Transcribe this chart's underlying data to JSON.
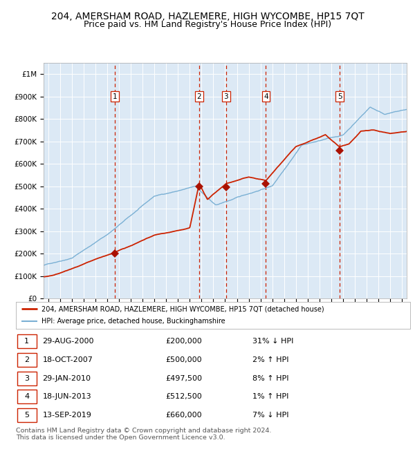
{
  "title": "204, AMERSHAM ROAD, HAZLEMERE, HIGH WYCOMBE, HP15 7QT",
  "subtitle": "Price paid vs. HM Land Registry's House Price Index (HPI)",
  "plot_bg_color": "#dce9f5",
  "fig_bg_color": "#ffffff",
  "red_line_color": "#cc2200",
  "blue_line_color": "#7ab0d4",
  "marker_color": "#aa1100",
  "dashed_color": "#cc2200",
  "ylabel_values": [
    0,
    100000,
    200000,
    300000,
    400000,
    500000,
    600000,
    700000,
    800000,
    900000,
    1000000
  ],
  "ylabel_labels": [
    "£0",
    "£100K",
    "£200K",
    "£300K",
    "£400K",
    "£500K",
    "£600K",
    "£700K",
    "£800K",
    "£900K",
    "£1M"
  ],
  "xmin": 1994.6,
  "xmax": 2025.4,
  "ymin": 0,
  "ymax": 1050000,
  "sales": [
    {
      "num": 1,
      "year": 2000.66,
      "price": 200000,
      "label": "1"
    },
    {
      "num": 2,
      "year": 2007.79,
      "price": 500000,
      "label": "2"
    },
    {
      "num": 3,
      "year": 2010.08,
      "price": 497500,
      "label": "3"
    },
    {
      "num": 4,
      "year": 2013.46,
      "price": 512500,
      "label": "4"
    },
    {
      "num": 5,
      "year": 2019.71,
      "price": 660000,
      "label": "5"
    }
  ],
  "table_rows": [
    {
      "num": 1,
      "date": "29-AUG-2000",
      "price": "£200,000",
      "hpi": "31% ↓ HPI"
    },
    {
      "num": 2,
      "date": "18-OCT-2007",
      "price": "£500,000",
      "hpi": "2% ↑ HPI"
    },
    {
      "num": 3,
      "date": "29-JAN-2010",
      "price": "£497,500",
      "hpi": "8% ↑ HPI"
    },
    {
      "num": 4,
      "date": "18-JUN-2013",
      "price": "£512,500",
      "hpi": "1% ↑ HPI"
    },
    {
      "num": 5,
      "date": "13-SEP-2019",
      "price": "£660,000",
      "hpi": "7% ↓ HPI"
    }
  ],
  "legend_line1": "204, AMERSHAM ROAD, HAZLEMERE, HIGH WYCOMBE, HP15 7QT (detached house)",
  "legend_line2": "HPI: Average price, detached house, Buckinghamshire",
  "footer": "Contains HM Land Registry data © Crown copyright and database right 2024.\nThis data is licensed under the Open Government Licence v3.0."
}
